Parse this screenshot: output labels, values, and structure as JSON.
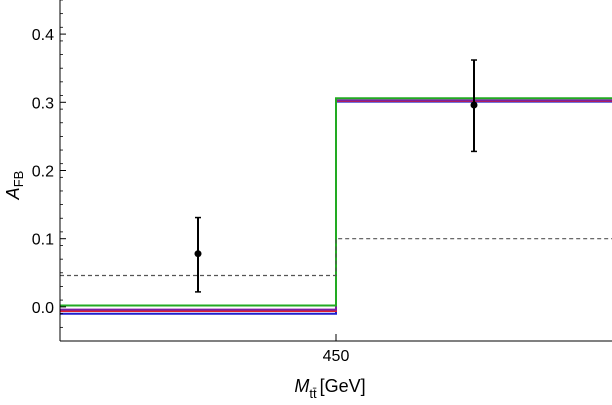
{
  "chart_data": {
    "type": "line",
    "title": "",
    "xlabel": {
      "symbol": "M",
      "subscript": "tt̄",
      "unit": "[GeV]"
    },
    "ylabel": {
      "symbol": "A",
      "subscript": "FB"
    },
    "xlim": [
      350,
      550
    ],
    "ylim": [
      -0.05,
      0.45
    ],
    "x_ticks": [
      {
        "value": 450,
        "label": "450"
      }
    ],
    "y_ticks": [
      {
        "value": 0.0,
        "label": "0.0"
      },
      {
        "value": 0.1,
        "label": "0.1"
      },
      {
        "value": 0.2,
        "label": "0.2"
      },
      {
        "value": 0.3,
        "label": "0.3"
      },
      {
        "value": 0.4,
        "label": "0.4"
      }
    ],
    "bin_edges": [
      350,
      450,
      550
    ],
    "series": [
      {
        "key": "blue",
        "style": "step",
        "color": "#1f1fcc",
        "values": [
          -0.01,
          0.301
        ]
      },
      {
        "key": "red",
        "style": "step",
        "color": "#e0202a",
        "values": [
          -0.006,
          0.302
        ]
      },
      {
        "key": "purple",
        "style": "step",
        "color": "#7a1fa2",
        "values": [
          -0.004,
          0.303
        ]
      },
      {
        "key": "green",
        "style": "step",
        "color": "#22aa22",
        "values": [
          0.002,
          0.306
        ]
      },
      {
        "key": "dashed",
        "style": "dashed-step",
        "color": "#555555",
        "values": [
          0.046,
          0.1
        ]
      }
    ],
    "data_points": [
      {
        "x": 400,
        "y": 0.078,
        "err_low": 0.022,
        "err_high": 0.131
      },
      {
        "x": 500,
        "y": 0.296,
        "err_low": 0.228,
        "err_high": 0.362
      }
    ],
    "grid": false
  }
}
